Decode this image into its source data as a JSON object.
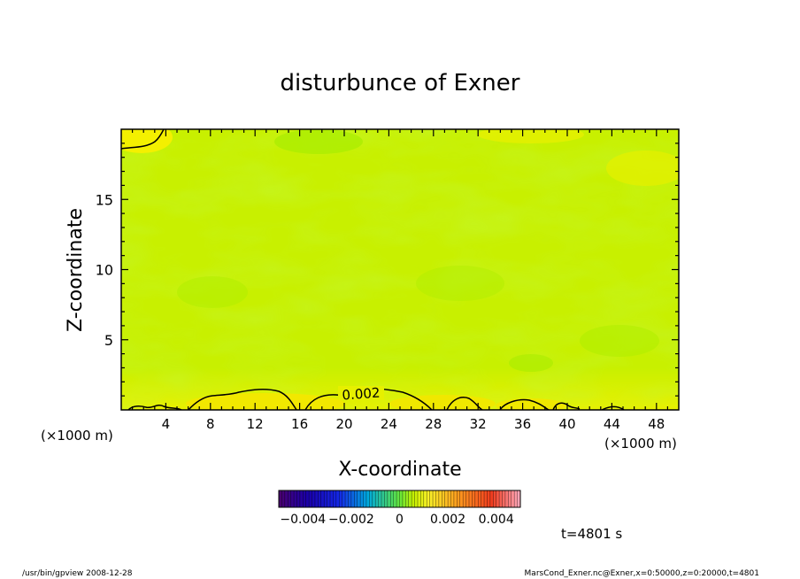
{
  "chart_data": {
    "type": "heatmap",
    "title": "disturbunce of Exner",
    "xlabel": "X-coordinate",
    "ylabel": "Z-coordinate",
    "x_unit": "(×1000 m)",
    "xlim": [
      0,
      50
    ],
    "ylim": [
      0,
      20
    ],
    "x_ticks": [
      4,
      8,
      12,
      16,
      20,
      24,
      28,
      32,
      36,
      40,
      44,
      48
    ],
    "y_ticks": [
      5,
      10,
      15
    ],
    "contour_label": "0.002",
    "colorbar": {
      "range": [
        -0.005,
        0.005
      ],
      "tick_values": [
        -0.004,
        -0.002,
        0,
        0.002,
        0.004
      ],
      "tick_labels": [
        "−0.004",
        "−0.002",
        "0",
        "0.002",
        "0.004"
      ]
    },
    "time_label": "t=4801 s"
  },
  "footer": {
    "left": "/usr/bin/gpview  2008-12-28",
    "right": "MarsCond_Exner.nc@Exner,x=0:50000,z=0:20000,t=4801"
  }
}
